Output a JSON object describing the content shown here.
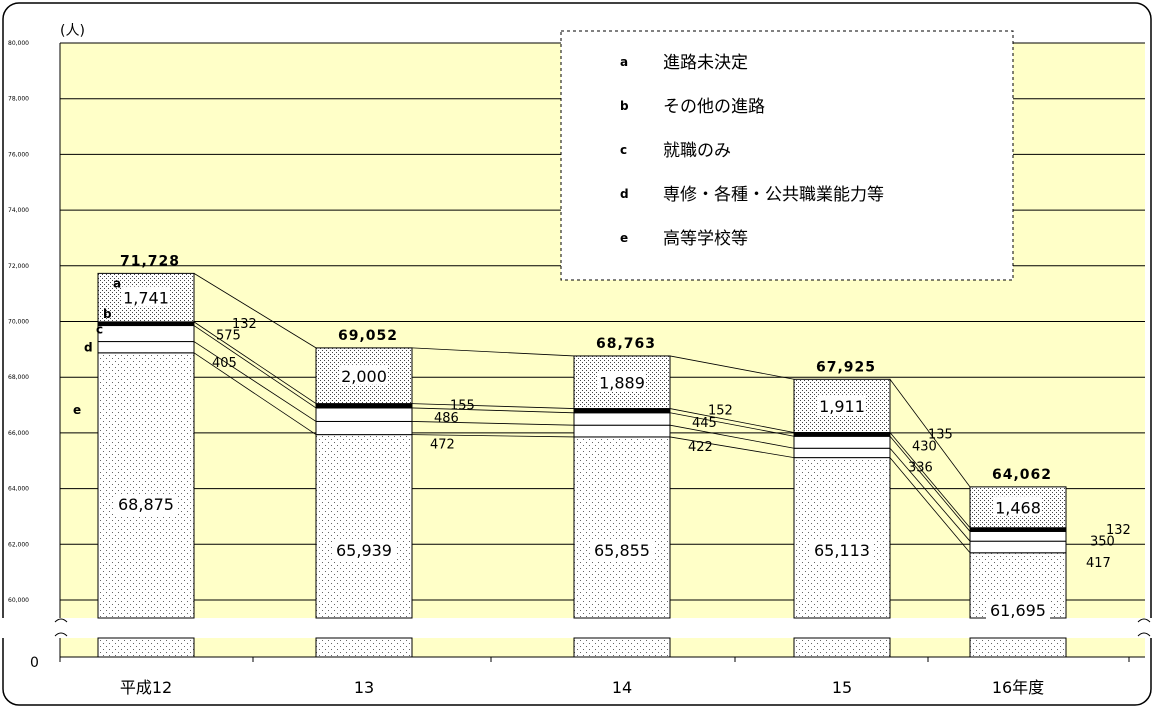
{
  "chart_data": {
    "type": "bar",
    "stacked": true,
    "unit_label": "(人)",
    "categories": [
      "平成12",
      "13",
      "14",
      "15",
      "16年度"
    ],
    "ylim": [
      60000,
      80000
    ],
    "yticks": [
      "80,000",
      "78,000",
      "76,000",
      "74,000",
      "72,000",
      "70,000",
      "68,000",
      "66,000",
      "64,000",
      "62,000",
      "60,000"
    ],
    "axis_break": true,
    "zero_label": "0",
    "grid": true,
    "legend_position": "top-right",
    "series": [
      {
        "key": "e",
        "name": "高等学校等",
        "values": [
          68875,
          65939,
          65855,
          65113,
          61695
        ],
        "labels": [
          "68,875",
          "65,939",
          "65,855",
          "65,113",
          "61,695"
        ]
      },
      {
        "key": "d",
        "name": "専修・各種・公共職業能力等",
        "values": [
          405,
          472,
          422,
          336,
          417
        ],
        "labels": [
          "405",
          "472",
          "422",
          "336",
          "417"
        ]
      },
      {
        "key": "c",
        "name": "就職のみ",
        "values": [
          575,
          486,
          445,
          430,
          350
        ],
        "labels": [
          "575",
          "486",
          "445",
          "430",
          "350"
        ]
      },
      {
        "key": "b",
        "name": "その他の進路",
        "values": [
          132,
          155,
          152,
          135,
          132
        ],
        "labels": [
          "132",
          "155",
          "152",
          "135",
          "132"
        ]
      },
      {
        "key": "a",
        "name": "進路未決定",
        "values": [
          1741,
          2000,
          1889,
          1911,
          1468
        ],
        "labels": [
          "1,741",
          "2,000",
          "1,889",
          "1,911",
          "1,468"
        ]
      }
    ],
    "totals": [
      "71,728",
      "69,052",
      "68,763",
      "67,925",
      "64,062"
    ],
    "segment_letters": [
      "a",
      "b",
      "c",
      "d",
      "e"
    ],
    "legend": [
      {
        "key": "a",
        "label": "進路未決定"
      },
      {
        "key": "b",
        "label": "その他の進路"
      },
      {
        "key": "c",
        "label": "就職のみ"
      },
      {
        "key": "d",
        "label": "専修・各種・公共職業能力等"
      },
      {
        "key": "e",
        "label": "高等学校等"
      }
    ],
    "colors": {
      "plot_bg": "#ffffc8",
      "grid": "#000000",
      "bar_fill": "#ffffff",
      "dot": "#555555"
    }
  }
}
